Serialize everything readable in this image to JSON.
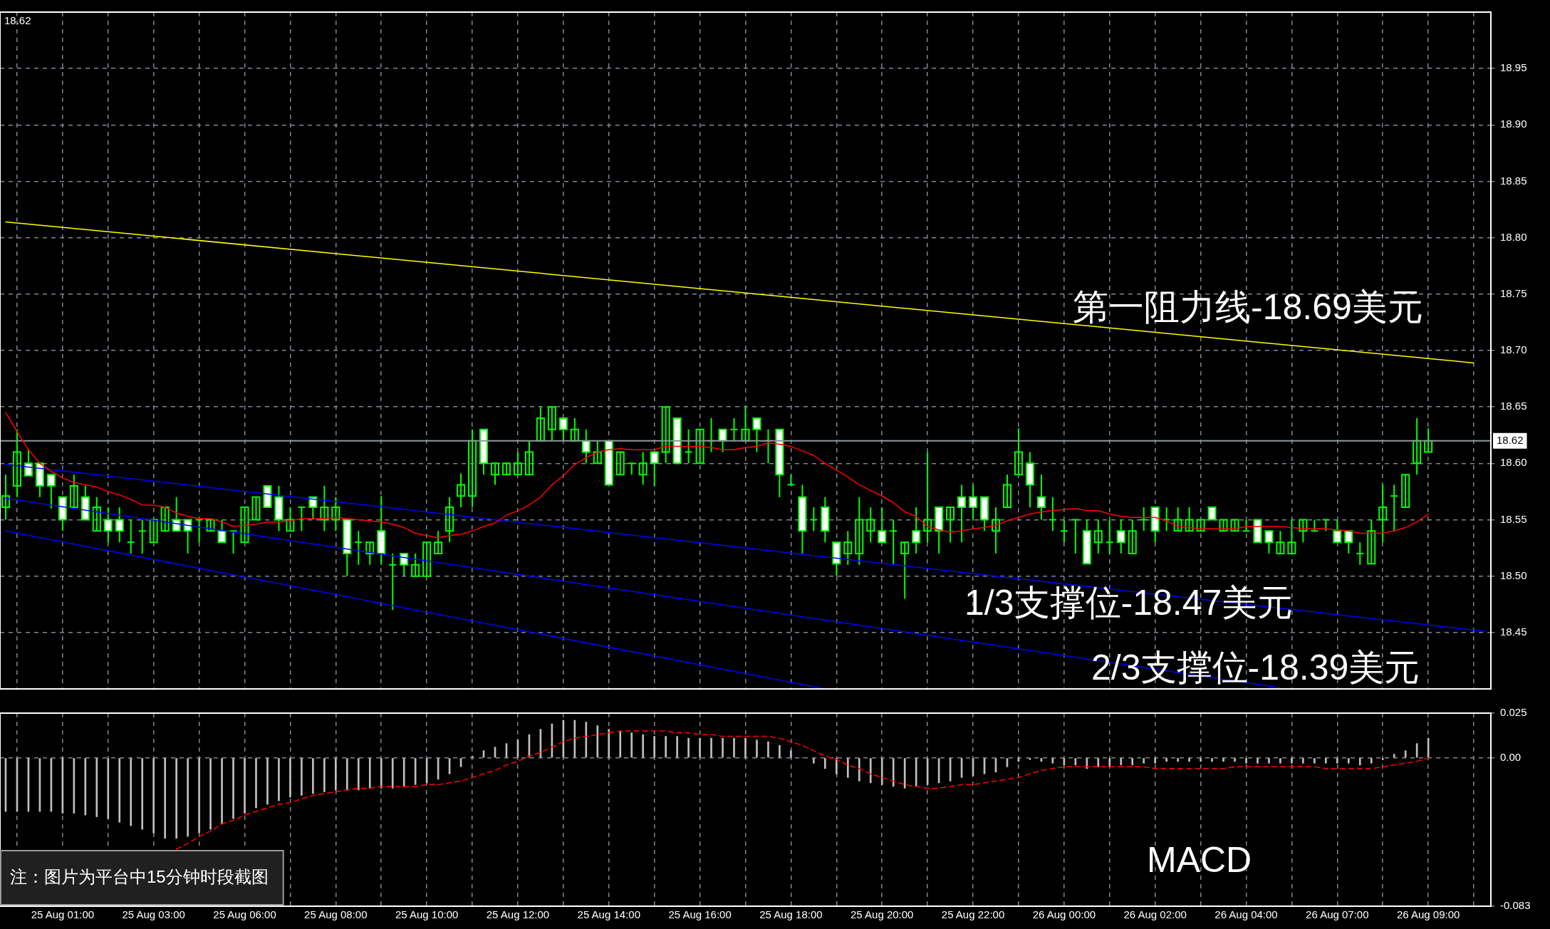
{
  "chart_data": [
    {
      "type": "candlestick",
      "categories": [
        null,
        null,
        null,
        null,
        null,
        null,
        null,
        null,
        null,
        null,
        null,
        null,
        null,
        null,
        null,
        null,
        null,
        null,
        null,
        null,
        null,
        null,
        null,
        null,
        null,
        null,
        null,
        null,
        null,
        null,
        null,
        null,
        null,
        null,
        null,
        null,
        null,
        null,
        null,
        null,
        null,
        null,
        null,
        null,
        null,
        null,
        null,
        null,
        null,
        null,
        null,
        null,
        null,
        null,
        null,
        null,
        null,
        null,
        null,
        null,
        null,
        null,
        null,
        null,
        null,
        null,
        null,
        null,
        null,
        null,
        null,
        null,
        null,
        null,
        null,
        null,
        null,
        null,
        null,
        null,
        null,
        null,
        null,
        null,
        null,
        null,
        null,
        null,
        null,
        null,
        null,
        null,
        null,
        null,
        null,
        null,
        null,
        null,
        null,
        null,
        null,
        null,
        null,
        null,
        null,
        null,
        null,
        null,
        null,
        null,
        null,
        null,
        null,
        null,
        null,
        null,
        null,
        null,
        null,
        null,
        null,
        null,
        null,
        null,
        null,
        null,
        null,
        null,
        null,
        null,
        null
      ],
      "ohlc": [
        [
          18.561,
          18.59,
          18.55,
          18.571
        ],
        [
          18.58,
          18.63,
          18.57,
          18.61
        ],
        [
          18.6,
          18.612,
          18.589,
          18.589
        ],
        [
          18.6,
          18.6,
          18.57,
          18.58
        ],
        [
          18.59,
          18.59,
          18.56,
          18.58
        ],
        [
          18.57,
          18.57,
          18.54,
          18.55
        ],
        [
          18.561,
          18.59,
          18.561,
          18.58
        ],
        [
          18.57,
          18.58,
          18.55,
          18.55
        ],
        [
          18.54,
          18.57,
          18.54,
          18.561
        ],
        [
          18.55,
          18.561,
          18.53,
          18.54
        ],
        [
          18.55,
          18.561,
          18.53,
          18.54
        ],
        [
          18.53,
          18.55,
          18.52,
          18.53
        ],
        [
          18.54,
          18.55,
          18.52,
          18.54
        ],
        [
          18.53,
          18.55,
          18.53,
          18.55
        ],
        [
          18.54,
          18.561,
          18.54,
          18.561
        ],
        [
          18.55,
          18.57,
          18.54,
          18.54
        ],
        [
          18.55,
          18.55,
          18.52,
          18.54
        ],
        [
          18.55,
          18.55,
          18.53,
          18.55
        ],
        [
          18.54,
          18.55,
          18.54,
          18.55
        ],
        [
          18.54,
          18.55,
          18.53,
          18.53
        ],
        [
          18.54,
          18.54,
          18.52,
          18.54
        ],
        [
          18.53,
          18.561,
          18.53,
          18.561
        ],
        [
          18.55,
          18.57,
          18.55,
          18.57
        ],
        [
          18.58,
          18.58,
          18.561,
          18.561
        ],
        [
          18.57,
          18.58,
          18.54,
          18.55
        ],
        [
          18.54,
          18.561,
          18.54,
          18.55
        ],
        [
          18.561,
          18.561,
          18.54,
          18.561
        ],
        [
          18.57,
          18.57,
          18.55,
          18.561
        ],
        [
          18.55,
          18.58,
          18.54,
          18.561
        ],
        [
          18.55,
          18.57,
          18.54,
          18.561
        ],
        [
          18.55,
          18.55,
          18.5,
          18.52
        ],
        [
          18.53,
          18.54,
          18.51,
          18.53
        ],
        [
          18.52,
          18.53,
          18.51,
          18.53
        ],
        [
          18.54,
          18.571,
          18.51,
          18.52
        ],
        [
          18.51,
          18.52,
          18.47,
          18.51
        ],
        [
          18.52,
          18.52,
          18.5,
          18.51
        ],
        [
          18.5,
          18.52,
          18.5,
          18.51
        ],
        [
          18.5,
          18.53,
          18.5,
          18.53
        ],
        [
          18.52,
          18.54,
          18.52,
          18.53
        ],
        [
          18.54,
          18.57,
          18.53,
          18.561
        ],
        [
          18.571,
          18.591,
          18.561,
          18.581
        ],
        [
          18.571,
          18.63,
          18.561,
          18.62
        ],
        [
          18.63,
          18.63,
          18.59,
          18.6
        ],
        [
          18.59,
          18.6,
          18.581,
          18.6
        ],
        [
          18.59,
          18.6,
          18.59,
          18.6
        ],
        [
          18.59,
          18.61,
          18.59,
          18.6
        ],
        [
          18.59,
          18.62,
          18.59,
          18.61
        ],
        [
          18.62,
          18.65,
          18.62,
          18.64
        ],
        [
          18.63,
          18.65,
          18.62,
          18.65
        ],
        [
          18.64,
          18.64,
          18.62,
          18.63
        ],
        [
          18.62,
          18.64,
          18.62,
          18.63
        ],
        [
          18.62,
          18.63,
          18.6,
          18.61
        ],
        [
          18.6,
          18.62,
          18.6,
          18.61
        ],
        [
          18.62,
          18.62,
          18.581,
          18.581
        ],
        [
          18.59,
          18.61,
          18.59,
          18.61
        ],
        [
          18.6,
          18.6,
          18.59,
          18.6
        ],
        [
          18.59,
          18.61,
          18.581,
          18.6
        ],
        [
          18.61,
          18.61,
          18.58,
          18.6
        ],
        [
          18.61,
          18.65,
          18.6,
          18.65
        ],
        [
          18.64,
          18.64,
          18.6,
          18.6
        ],
        [
          18.61,
          18.63,
          18.6,
          18.61
        ],
        [
          18.6,
          18.63,
          18.6,
          18.63
        ],
        [
          18.62,
          18.64,
          18.61,
          18.62
        ],
        [
          18.63,
          18.63,
          18.61,
          18.62
        ],
        [
          18.63,
          18.64,
          18.62,
          18.63
        ],
        [
          18.62,
          18.65,
          18.62,
          18.63
        ],
        [
          18.64,
          18.64,
          18.61,
          18.63
        ],
        [
          18.62,
          18.63,
          18.6,
          18.62
        ],
        [
          18.63,
          18.63,
          18.57,
          18.59
        ],
        [
          18.581,
          18.59,
          18.581,
          18.581
        ],
        [
          18.57,
          18.581,
          18.52,
          18.54
        ],
        [
          18.55,
          18.561,
          18.54,
          18.55
        ],
        [
          18.561,
          18.57,
          18.53,
          18.54
        ],
        [
          18.53,
          18.53,
          18.5,
          18.511
        ],
        [
          18.52,
          18.54,
          18.51,
          18.53
        ],
        [
          18.52,
          18.57,
          18.51,
          18.55
        ],
        [
          18.54,
          18.561,
          18.53,
          18.55
        ],
        [
          18.54,
          18.561,
          18.53,
          18.53
        ],
        [
          18.54,
          18.55,
          18.51,
          18.54
        ],
        [
          18.52,
          18.53,
          18.48,
          18.53
        ],
        [
          18.54,
          18.561,
          18.52,
          18.53
        ],
        [
          18.54,
          18.61,
          18.53,
          18.55
        ],
        [
          18.561,
          18.561,
          18.52,
          18.54
        ],
        [
          18.55,
          18.561,
          18.53,
          18.561
        ],
        [
          18.57,
          18.581,
          18.53,
          18.561
        ],
        [
          18.57,
          18.581,
          18.55,
          18.561
        ],
        [
          18.57,
          18.57,
          18.54,
          18.55
        ],
        [
          18.54,
          18.561,
          18.52,
          18.55
        ],
        [
          18.561,
          18.59,
          18.561,
          18.581
        ],
        [
          18.59,
          18.631,
          18.59,
          18.61
        ],
        [
          18.6,
          18.61,
          18.561,
          18.581
        ],
        [
          18.57,
          18.59,
          18.55,
          18.561
        ],
        [
          18.55,
          18.57,
          18.54,
          18.55
        ],
        [
          18.54,
          18.55,
          18.53,
          18.54
        ],
        [
          18.55,
          18.55,
          18.52,
          18.55
        ],
        [
          18.54,
          18.55,
          18.511,
          18.511
        ],
        [
          18.53,
          18.55,
          18.52,
          18.54
        ],
        [
          18.53,
          18.55,
          18.52,
          18.53
        ],
        [
          18.54,
          18.55,
          18.52,
          18.53
        ],
        [
          18.52,
          18.55,
          18.52,
          18.54
        ],
        [
          18.55,
          18.561,
          18.54,
          18.55
        ],
        [
          18.561,
          18.561,
          18.53,
          18.54
        ],
        [
          18.55,
          18.561,
          18.54,
          18.55
        ],
        [
          18.54,
          18.561,
          18.54,
          18.55
        ],
        [
          18.54,
          18.561,
          18.54,
          18.55
        ],
        [
          18.54,
          18.55,
          18.54,
          18.55
        ],
        [
          18.561,
          18.561,
          18.55,
          18.55
        ],
        [
          18.54,
          18.55,
          18.54,
          18.55
        ],
        [
          18.54,
          18.55,
          18.54,
          18.55
        ],
        [
          18.54,
          18.55,
          18.54,
          18.54
        ],
        [
          18.55,
          18.55,
          18.53,
          18.53
        ],
        [
          18.54,
          18.54,
          18.52,
          18.53
        ],
        [
          18.52,
          18.54,
          18.52,
          18.53
        ],
        [
          18.52,
          18.55,
          18.52,
          18.53
        ],
        [
          18.54,
          18.55,
          18.53,
          18.55
        ],
        [
          18.54,
          18.55,
          18.54,
          18.54
        ],
        [
          18.55,
          18.55,
          18.54,
          18.55
        ],
        [
          18.54,
          18.55,
          18.53,
          18.53
        ],
        [
          18.54,
          18.54,
          18.52,
          18.53
        ],
        [
          18.52,
          18.53,
          18.51,
          18.52
        ],
        [
          18.511,
          18.55,
          18.511,
          18.54
        ],
        [
          18.55,
          18.581,
          18.53,
          18.561
        ],
        [
          18.571,
          18.581,
          18.54,
          18.571
        ],
        [
          18.561,
          18.59,
          18.561,
          18.59
        ],
        [
          18.6,
          18.64,
          18.59,
          18.62
        ],
        [
          18.61,
          18.631,
          18.61,
          18.62
        ],
        null,
        null,
        null,
        null,
        null
      ],
      "color": "#00ff00",
      "colors": [
        "#00ff00",
        "#00ff00",
        "#ffffff",
        "#ffffff",
        "#ffffff",
        "#ffffff",
        "#00ff00",
        "#ffffff",
        "#00ff00",
        "#ffffff",
        "#ffffff",
        "#00ff00",
        "#00ff00",
        "#00ff00",
        "#00ff00",
        "#ffffff",
        "#ffffff",
        "#00ff00",
        "#00ff00",
        "#ffffff",
        "#00ff00",
        "#00ff00",
        "#00ff00",
        "#ffffff",
        "#ffffff",
        "#00ff00",
        "#00ff00",
        "#ffffff",
        "#00ff00",
        "#00ff00",
        "#ffffff",
        "#00ff00",
        "#00ff00",
        "#ffffff",
        "#00ff00",
        "#ffffff",
        "#00ff00",
        "#00ff00",
        "#00ff00",
        "#00ff00",
        "#00ff00",
        "#00ff00",
        "#ffffff",
        "#00ff00",
        "#00ff00",
        "#00ff00",
        "#00ff00",
        "#00ff00",
        "#00ff00",
        "#ffffff",
        "#00ff00",
        "#ffffff",
        "#00ff00",
        "#ffffff",
        "#00ff00",
        "#00ff00",
        "#00ff00",
        "#ffffff",
        "#00ff00",
        "#ffffff",
        "#00ff00",
        "#00ff00",
        "#00ff00",
        "#ffffff",
        "#00ff00",
        "#00ff00",
        "#ffffff",
        "#00ff00",
        "#ffffff",
        "#00ff00",
        "#ffffff",
        "#00ff00",
        "#ffffff",
        "#ffffff",
        "#00ff00",
        "#00ff00",
        "#00ff00",
        "#ffffff",
        "#00ff00",
        "#00ff00",
        "#ffffff",
        "#00ff00",
        "#ffffff",
        "#00ff00",
        "#ffffff",
        "#ffffff",
        "#ffffff",
        "#00ff00",
        "#00ff00",
        "#00ff00",
        "#ffffff",
        "#ffffff",
        "#00ff00",
        "#00ff00",
        "#00ff00",
        "#ffffff",
        "#00ff00",
        "#00ff00",
        "#ffffff",
        "#00ff00",
        "#00ff00",
        "#ffffff",
        "#00ff00",
        "#00ff00",
        "#00ff00",
        "#00ff00",
        "#ffffff",
        "#00ff00",
        "#00ff00",
        "#00ff00",
        "#ffffff",
        "#ffffff",
        "#00ff00",
        "#00ff00",
        "#00ff00",
        "#00ff00",
        "#00ff00",
        "#ffffff",
        "#ffffff",
        "#00ff00",
        "#00ff00",
        "#00ff00",
        "#00ff00",
        "#00ff00",
        "#00ff00",
        "#00ff00",
        null,
        null,
        null,
        null,
        null
      ],
      "series": [
        {
          "type": "line",
          "color": "#ff0000",
          "values": [
            18.645,
            18.628,
            18.612,
            18.6,
            18.593,
            18.587,
            18.583,
            18.581,
            18.579,
            18.575,
            18.572,
            18.568,
            18.563,
            18.563,
            18.561,
            18.556,
            18.553,
            18.551,
            18.551,
            18.548,
            18.544,
            18.545,
            18.546,
            18.548,
            18.548,
            18.549,
            18.551,
            18.551,
            18.551,
            18.552,
            18.551,
            18.55,
            18.549,
            18.548,
            18.546,
            18.543,
            18.538,
            18.536,
            18.534,
            18.536,
            18.537,
            18.54,
            18.544,
            18.547,
            18.554,
            18.558,
            18.563,
            18.57,
            18.581,
            18.589,
            18.599,
            18.605,
            18.61,
            18.612,
            18.613,
            18.612,
            18.612,
            18.612,
            18.615,
            18.615,
            18.615,
            18.615,
            18.614,
            18.612,
            18.612,
            18.614,
            18.615,
            18.618,
            18.617,
            18.615,
            18.611,
            18.607,
            18.6,
            18.594,
            18.588,
            18.581,
            18.576,
            18.571,
            18.565,
            18.557,
            18.553,
            18.544,
            18.541,
            18.539,
            18.54,
            18.542,
            18.543,
            18.545,
            18.549,
            18.552,
            18.555,
            18.557,
            18.558,
            18.559,
            18.56,
            18.558,
            18.558,
            18.555,
            18.553,
            18.552,
            18.552,
            18.552,
            18.549,
            18.544,
            18.543,
            18.542,
            18.542,
            18.542,
            18.542,
            18.544,
            18.544,
            18.544,
            18.544,
            18.543,
            18.542,
            18.542,
            18.542,
            18.541,
            18.54,
            18.538,
            18.538,
            18.538,
            18.54,
            18.543,
            18.548,
            18.555,
            null,
            null,
            null,
            null,
            null
          ]
        },
        {
          "type": "line",
          "color": "#ffff00",
          "values": [
            18.814,
            null,
            null,
            null,
            null,
            null,
            null,
            null,
            null,
            null,
            null,
            null,
            null,
            null,
            null,
            null,
            null,
            null,
            null,
            null,
            null,
            null,
            null,
            null,
            null,
            null,
            null,
            null,
            null,
            null,
            null,
            null,
            null,
            null,
            null,
            null,
            null,
            null,
            null,
            null,
            null,
            null,
            null,
            null,
            null,
            null,
            null,
            null,
            null,
            null,
            null,
            null,
            null,
            null,
            null,
            null,
            null,
            null,
            null,
            null,
            null,
            null,
            null,
            null,
            null,
            null,
            null,
            null,
            null,
            null,
            null,
            null,
            null,
            null,
            null,
            null,
            null,
            null,
            null,
            null,
            null,
            null,
            null,
            null,
            null,
            null,
            null,
            null,
            null,
            null,
            null,
            null,
            null,
            null,
            null,
            null,
            null,
            null,
            null,
            null,
            null,
            null,
            null,
            null,
            null,
            null,
            null,
            null,
            null,
            null,
            null,
            null,
            null,
            null,
            null,
            null,
            null,
            null,
            null,
            null,
            null,
            null,
            null,
            null,
            null,
            null,
            null,
            null,
            null,
            18.689,
            null
          ]
        },
        {
          "type": "line",
          "color": "#0000ff",
          "values": [
            18.599,
            null,
            null,
            null,
            null,
            null,
            null,
            null,
            null,
            null,
            null,
            null,
            null,
            null,
            null,
            null,
            null,
            null,
            null,
            null,
            null,
            null,
            null,
            null,
            null,
            null,
            null,
            null,
            null,
            null,
            null,
            null,
            null,
            null,
            null,
            null,
            null,
            null,
            null,
            null,
            null,
            null,
            null,
            null,
            null,
            null,
            null,
            null,
            null,
            null,
            null,
            null,
            null,
            null,
            null,
            null,
            null,
            null,
            null,
            null,
            null,
            null,
            null,
            null,
            null,
            null,
            null,
            null,
            null,
            null,
            null,
            null,
            null,
            null,
            null,
            null,
            null,
            null,
            null,
            null,
            null,
            null,
            null,
            null,
            null,
            null,
            null,
            null,
            null,
            null,
            null,
            null,
            null,
            null,
            null,
            null,
            null,
            null,
            null,
            null,
            null,
            null,
            null,
            null,
            null,
            null,
            null,
            null,
            null,
            null,
            null,
            null,
            null,
            null,
            null,
            null,
            null,
            null,
            null,
            null,
            null,
            null,
            null,
            null,
            null,
            null,
            null,
            null,
            null,
            null,
            18.451
          ]
        },
        {
          "type": "line",
          "color": "#0000ff",
          "values": [
            18.569,
            null,
            null,
            null,
            null,
            null,
            null,
            null,
            null,
            null,
            null,
            null,
            null,
            null,
            null,
            null,
            null,
            null,
            null,
            null,
            null,
            null,
            null,
            null,
            null,
            null,
            null,
            null,
            null,
            null,
            null,
            null,
            null,
            null,
            null,
            null,
            null,
            null,
            null,
            null,
            null,
            null,
            null,
            null,
            null,
            null,
            null,
            null,
            null,
            null,
            null,
            null,
            null,
            null,
            null,
            null,
            null,
            null,
            null,
            null,
            null,
            null,
            null,
            null,
            null,
            null,
            null,
            null,
            null,
            null,
            null,
            null,
            null,
            null,
            null,
            null,
            null,
            null,
            null,
            null,
            null,
            null,
            null,
            null,
            null,
            null,
            null,
            null,
            null,
            null,
            null,
            null,
            null,
            null,
            null,
            null,
            null,
            null,
            null,
            null,
            null,
            null,
            null,
            null,
            null,
            null,
            null,
            null,
            null,
            null,
            null,
            null,
            18.401,
            null,
            null,
            null,
            null,
            null,
            null,
            null,
            null,
            null,
            null,
            null,
            null,
            null,
            null,
            null,
            null,
            null,
            null
          ]
        },
        {
          "type": "line",
          "color": "#0000ff",
          "values": [
            18.54,
            null,
            null,
            null,
            null,
            null,
            null,
            null,
            null,
            null,
            null,
            null,
            null,
            null,
            null,
            null,
            null,
            null,
            null,
            null,
            null,
            null,
            null,
            null,
            null,
            null,
            null,
            null,
            null,
            null,
            null,
            null,
            null,
            null,
            null,
            null,
            null,
            null,
            null,
            null,
            null,
            null,
            null,
            null,
            null,
            null,
            null,
            null,
            null,
            null,
            null,
            null,
            null,
            null,
            null,
            null,
            null,
            null,
            null,
            null,
            null,
            null,
            null,
            null,
            null,
            null,
            null,
            null,
            null,
            null,
            null,
            null,
            18.4,
            null,
            null,
            null,
            null,
            null,
            null,
            null,
            null,
            null,
            null,
            null,
            null,
            null,
            null,
            null,
            null,
            null,
            null,
            null,
            null,
            null,
            null,
            null,
            null,
            null,
            null,
            null,
            null,
            null,
            null,
            null,
            null,
            null,
            null,
            null,
            null,
            null,
            null,
            null,
            null,
            null,
            null,
            null,
            null,
            null,
            null,
            null,
            null,
            null,
            null,
            null,
            null,
            null,
            null,
            null,
            null,
            null,
            null
          ]
        }
      ],
      "ylim": [
        18.4,
        19.0
      ],
      "yticks": [
        18.45,
        {
          "value": 18.5,
          "label": "18.50"
        },
        18.55,
        {
          "value": 18.6,
          "label": "18.60"
        },
        18.65,
        {
          "value": 18.7,
          "label": "18.70"
        },
        18.75,
        {
          "value": 18.8,
          "label": "18.80"
        },
        18.85,
        {
          "value": 18.9,
          "label": "18.90"
        },
        18.95
      ],
      "grid": true,
      "tick_labels": "y",
      "ref_lines": [
        {
          "axis": "y",
          "value": 18.62,
          "label": "18.62",
          "color": "#8c96a0"
        }
      ],
      "annotations": [
        "18.62",
        "第一阻力线-18.69美元",
        "1/3支撑位-18.47美元",
        "2/3支撑位-18.39美元"
      ]
    },
    {
      "type": "bar",
      "categories": [
        null,
        null,
        null,
        null,
        null,
        "25 Aug 01:00",
        null,
        null,
        null,
        null,
        null,
        null,
        null,
        "25 Aug 03:00",
        null,
        null,
        null,
        null,
        null,
        null,
        null,
        "25 Aug 06:00",
        null,
        null,
        null,
        null,
        null,
        null,
        null,
        "25 Aug 08:00",
        null,
        null,
        null,
        null,
        null,
        null,
        null,
        "25 Aug 10:00",
        null,
        null,
        null,
        null,
        null,
        null,
        null,
        "25 Aug 12:00",
        null,
        null,
        null,
        null,
        null,
        null,
        null,
        "25 Aug 14:00",
        null,
        null,
        null,
        null,
        null,
        null,
        null,
        "25 Aug 16:00",
        null,
        null,
        null,
        null,
        null,
        null,
        null,
        "25 Aug 18:00",
        null,
        null,
        null,
        null,
        null,
        null,
        null,
        "25 Aug 20:00",
        null,
        null,
        null,
        null,
        null,
        null,
        null,
        "25 Aug 22:00",
        null,
        null,
        null,
        null,
        null,
        null,
        null,
        "26 Aug 00:00",
        null,
        null,
        null,
        null,
        null,
        null,
        null,
        "26 Aug 02:00",
        null,
        null,
        null,
        null,
        null,
        null,
        null,
        "26 Aug 04:00",
        null,
        null,
        null,
        null,
        null,
        null,
        null,
        "26 Aug 07:00",
        null,
        null,
        null,
        null,
        null,
        null,
        null,
        "26 Aug 09:00",
        null,
        null,
        null,
        null,
        null
      ],
      "series": [
        {
          "color": "#c0c0c0",
          "values": [
            -0.03,
            -0.03,
            -0.03,
            -0.03,
            -0.03,
            -0.031,
            -0.031,
            -0.032,
            -0.033,
            -0.034,
            -0.036,
            -0.038,
            -0.04,
            -0.042,
            -0.045,
            -0.045,
            -0.044,
            -0.042,
            -0.04,
            -0.037,
            -0.034,
            -0.031,
            -0.028,
            -0.026,
            -0.024,
            -0.022,
            -0.021,
            -0.02,
            -0.019,
            -0.018,
            -0.018,
            -0.018,
            -0.017,
            -0.017,
            -0.017,
            -0.016,
            -0.015,
            -0.014,
            -0.012,
            -0.009,
            -0.005,
            0.001,
            0.004,
            0.006,
            0.008,
            0.01,
            0.013,
            0.016,
            0.019,
            0.021,
            0.021,
            0.02,
            0.018,
            0.016,
            0.015,
            0.014,
            0.013,
            0.012,
            0.012,
            0.012,
            0.011,
            0.011,
            0.011,
            0.011,
            0.011,
            0.011,
            0.01,
            0.009,
            0.007,
            0.004,
            0.0,
            -0.003,
            -0.006,
            -0.009,
            -0.011,
            -0.013,
            -0.014,
            -0.015,
            -0.016,
            -0.017,
            -0.016,
            -0.015,
            -0.014,
            -0.013,
            -0.011,
            -0.01,
            -0.009,
            -0.008,
            -0.005,
            -0.002,
            -0.001,
            -0.002,
            -0.003,
            -0.004,
            -0.004,
            -0.006,
            -0.005,
            -0.005,
            -0.004,
            -0.004,
            -0.003,
            -0.003,
            -0.002,
            -0.002,
            -0.002,
            -0.002,
            -0.002,
            -0.002,
            -0.002,
            -0.003,
            -0.003,
            -0.003,
            -0.003,
            -0.003,
            -0.003,
            -0.003,
            -0.003,
            -0.003,
            -0.003,
            -0.004,
            -0.003,
            -0.001,
            0.002,
            0.004,
            0.008,
            0.011,
            null,
            null,
            null,
            null,
            null
          ]
        },
        {
          "type": "line",
          "color": "#ff0000",
          "line_style": "dashed",
          "values": [
            null,
            null,
            null,
            null,
            null,
            null,
            null,
            null,
            null,
            null,
            null,
            null,
            null,
            null,
            null,
            -0.051,
            -0.048,
            -0.044,
            -0.041,
            -0.037,
            -0.035,
            -0.032,
            -0.03,
            -0.028,
            -0.026,
            -0.025,
            -0.023,
            -0.021,
            -0.02,
            -0.019,
            -0.018,
            -0.017,
            -0.017,
            -0.016,
            -0.016,
            -0.016,
            -0.016,
            -0.015,
            -0.015,
            -0.014,
            -0.013,
            -0.011,
            -0.009,
            -0.007,
            -0.004,
            -0.002,
            0.001,
            0.003,
            0.006,
            0.009,
            0.011,
            0.012,
            0.013,
            0.014,
            0.015,
            0.015,
            0.015,
            0.015,
            0.015,
            0.014,
            0.014,
            0.013,
            0.013,
            0.012,
            0.012,
            0.012,
            0.012,
            0.012,
            0.011,
            0.009,
            0.007,
            0.004,
            0.001,
            -0.001,
            -0.004,
            -0.006,
            -0.009,
            -0.011,
            -0.013,
            -0.015,
            -0.016,
            -0.017,
            -0.017,
            -0.016,
            -0.015,
            -0.015,
            -0.014,
            -0.013,
            -0.012,
            -0.011,
            -0.009,
            -0.007,
            -0.006,
            -0.005,
            -0.005,
            -0.005,
            -0.005,
            -0.005,
            -0.005,
            -0.005,
            -0.005,
            -0.006,
            -0.006,
            -0.006,
            -0.006,
            -0.006,
            -0.006,
            -0.006,
            -0.005,
            -0.005,
            -0.005,
            -0.005,
            -0.005,
            -0.005,
            -0.005,
            -0.005,
            -0.006,
            -0.006,
            -0.006,
            -0.006,
            -0.006,
            -0.005,
            -0.004,
            -0.003,
            -0.002,
            0.0,
            null,
            null,
            null,
            null,
            null
          ]
        }
      ],
      "ylim": [
        -0.083,
        0.025
      ],
      "yticks": [
        -0.083,
        {
          "value": 0,
          "label": "0.00"
        },
        0.025
      ],
      "grid": true,
      "annotations": [
        "MACD",
        "注：图片为平台中15分钟时段截图"
      ]
    }
  ]
}
